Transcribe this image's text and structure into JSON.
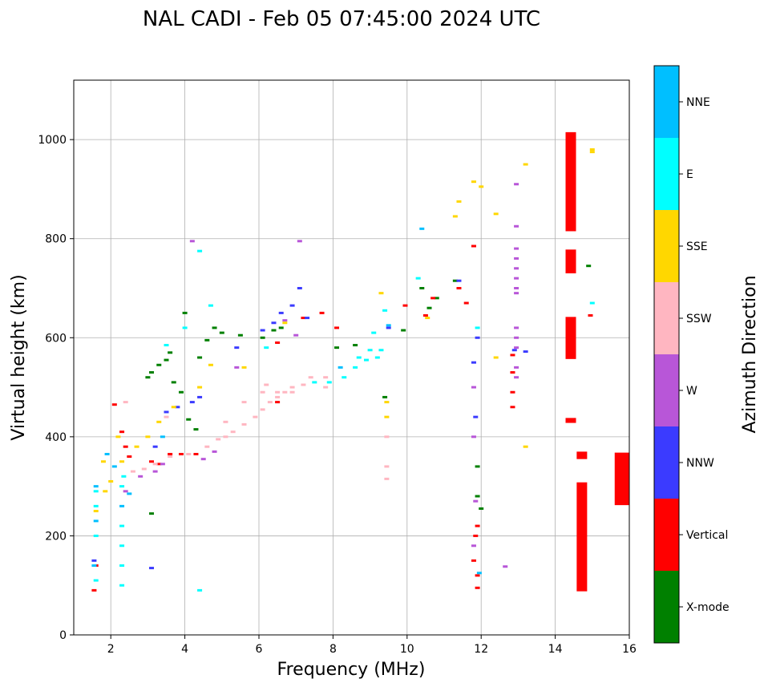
{
  "chart_data": {
    "type": "scatter",
    "title": "NAL CADI - Feb 05 07:45:00 2024 UTC",
    "xlabel": "Frequency (MHz)",
    "ylabel": "Virtual height (km)",
    "xlim": [
      1,
      16
    ],
    "ylim": [
      0,
      1120
    ],
    "xticks": [
      "2",
      "4",
      "6",
      "8",
      "10",
      "12",
      "14",
      "16"
    ],
    "yticks": [
      "0",
      "200",
      "400",
      "600",
      "800",
      "1000"
    ],
    "grid": true,
    "colorbar": {
      "label": "Azimuth Direction",
      "categories": [
        {
          "name": "X-mode",
          "color": "#008000"
        },
        {
          "name": "Vertical",
          "color": "#ff0000"
        },
        {
          "name": "NNW",
          "color": "#3b3bff"
        },
        {
          "name": "W",
          "color": "#b856d8"
        },
        {
          "name": "SSW",
          "color": "#ffb6c1"
        },
        {
          "name": "SSE",
          "color": "#ffd700"
        },
        {
          "name": "E",
          "color": "#00ffff"
        },
        {
          "name": "NNE",
          "color": "#00bfff"
        }
      ]
    },
    "series": [
      {
        "name": "X-mode",
        "points": [
          [
            3.0,
            520
          ],
          [
            3.1,
            530
          ],
          [
            3.3,
            545
          ],
          [
            3.5,
            555
          ],
          [
            3.6,
            570
          ],
          [
            3.7,
            510
          ],
          [
            3.9,
            490
          ],
          [
            4.0,
            650
          ],
          [
            4.1,
            435
          ],
          [
            4.3,
            415
          ],
          [
            4.4,
            560
          ],
          [
            4.6,
            595
          ],
          [
            4.8,
            620
          ],
          [
            5.0,
            610
          ],
          [
            5.5,
            605
          ],
          [
            6.1,
            600
          ],
          [
            6.4,
            615
          ],
          [
            6.6,
            620
          ],
          [
            8.1,
            580
          ],
          [
            8.6,
            585
          ],
          [
            9.4,
            480
          ],
          [
            9.9,
            615
          ],
          [
            10.4,
            700
          ],
          [
            10.6,
            660
          ],
          [
            10.8,
            680
          ],
          [
            11.3,
            715
          ],
          [
            11.9,
            340
          ],
          [
            11.9,
            280
          ],
          [
            12.0,
            255
          ],
          [
            14.4,
            1000
          ],
          [
            14.4,
            970
          ],
          [
            14.4,
            940
          ],
          [
            14.9,
            745
          ],
          [
            3.1,
            245
          ]
        ]
      },
      {
        "name": "Vertical",
        "points": [
          [
            1.55,
            90
          ],
          [
            1.6,
            140
          ],
          [
            2.1,
            465
          ],
          [
            2.3,
            410
          ],
          [
            2.4,
            380
          ],
          [
            2.5,
            360
          ],
          [
            3.1,
            350
          ],
          [
            3.3,
            345
          ],
          [
            3.6,
            365
          ],
          [
            3.9,
            365
          ],
          [
            4.3,
            365
          ],
          [
            6.5,
            470
          ],
          [
            6.5,
            590
          ],
          [
            7.2,
            640
          ],
          [
            7.7,
            650
          ],
          [
            8.1,
            620
          ],
          [
            9.95,
            665
          ],
          [
            10.5,
            645
          ],
          [
            10.7,
            680
          ],
          [
            11.4,
            700
          ],
          [
            11.6,
            670
          ],
          [
            11.8,
            785
          ],
          [
            11.8,
            150
          ],
          [
            11.85,
            200
          ],
          [
            11.9,
            120
          ],
          [
            11.9,
            95
          ],
          [
            11.9,
            220
          ],
          [
            12.85,
            565
          ],
          [
            12.85,
            530
          ],
          [
            12.85,
            490
          ],
          [
            12.85,
            460
          ],
          [
            14.95,
            645
          ]
        ],
        "bands": [
          {
            "x": 14.42,
            "y0": 815,
            "y1": 1015
          },
          {
            "x": 14.42,
            "y0": 730,
            "y1": 778
          },
          {
            "x": 14.42,
            "y0": 557,
            "y1": 642
          },
          {
            "x": 14.42,
            "y0": 428,
            "y1": 438
          },
          {
            "x": 14.72,
            "y0": 88,
            "y1": 308
          },
          {
            "x": 14.72,
            "y0": 355,
            "y1": 370
          },
          {
            "x": 15.8,
            "y0": 262,
            "y1": 368
          }
        ]
      },
      {
        "name": "NNW",
        "points": [
          [
            3.2,
            380
          ],
          [
            3.5,
            450
          ],
          [
            3.8,
            460
          ],
          [
            4.2,
            470
          ],
          [
            4.4,
            480
          ],
          [
            5.4,
            580
          ],
          [
            6.1,
            615
          ],
          [
            6.4,
            630
          ],
          [
            6.6,
            650
          ],
          [
            6.9,
            665
          ],
          [
            7.1,
            700
          ],
          [
            7.3,
            640
          ],
          [
            9.5,
            620
          ],
          [
            11.4,
            715
          ],
          [
            11.8,
            550
          ],
          [
            11.85,
            440
          ],
          [
            11.9,
            600
          ],
          [
            12.9,
            575
          ],
          [
            13.2,
            572
          ],
          [
            3.1,
            135
          ],
          [
            1.55,
            150
          ]
        ]
      },
      {
        "name": "W",
        "points": [
          [
            2.4,
            290
          ],
          [
            2.8,
            320
          ],
          [
            3.2,
            330
          ],
          [
            3.4,
            345
          ],
          [
            4.5,
            355
          ],
          [
            4.8,
            370
          ],
          [
            5.4,
            540
          ],
          [
            6.7,
            635
          ],
          [
            7.0,
            605
          ],
          [
            4.2,
            795
          ],
          [
            7.1,
            795
          ],
          [
            11.8,
            500
          ],
          [
            11.8,
            400
          ],
          [
            11.85,
            270
          ],
          [
            11.8,
            180
          ],
          [
            12.65,
            138
          ],
          [
            12.95,
            910
          ],
          [
            12.95,
            825
          ],
          [
            12.95,
            780
          ],
          [
            12.95,
            760
          ],
          [
            12.95,
            740
          ],
          [
            12.95,
            720
          ],
          [
            12.95,
            700
          ],
          [
            12.95,
            690
          ],
          [
            12.95,
            620
          ],
          [
            12.95,
            600
          ],
          [
            12.95,
            580
          ],
          [
            12.95,
            540
          ],
          [
            12.95,
            520
          ]
        ]
      },
      {
        "name": "SSW",
        "points": [
          [
            2.6,
            330
          ],
          [
            2.9,
            335
          ],
          [
            3.2,
            345
          ],
          [
            3.6,
            360
          ],
          [
            4.1,
            365
          ],
          [
            4.6,
            380
          ],
          [
            4.9,
            395
          ],
          [
            5.1,
            400
          ],
          [
            5.3,
            410
          ],
          [
            5.6,
            425
          ],
          [
            5.9,
            440
          ],
          [
            6.1,
            455
          ],
          [
            6.3,
            470
          ],
          [
            6.5,
            480
          ],
          [
            6.7,
            490
          ],
          [
            6.9,
            500
          ],
          [
            7.2,
            505
          ],
          [
            7.8,
            520
          ],
          [
            5.1,
            430
          ],
          [
            5.6,
            470
          ],
          [
            6.1,
            490
          ],
          [
            6.2,
            505
          ],
          [
            6.5,
            490
          ],
          [
            6.9,
            490
          ],
          [
            7.4,
            520
          ],
          [
            7.8,
            500
          ],
          [
            9.45,
            400
          ],
          [
            9.45,
            340
          ],
          [
            9.45,
            315
          ],
          [
            3.5,
            440
          ],
          [
            2.4,
            470
          ]
        ]
      },
      {
        "name": "SSE",
        "points": [
          [
            1.6,
            250
          ],
          [
            1.85,
            290
          ],
          [
            2.0,
            310
          ],
          [
            2.3,
            350
          ],
          [
            2.7,
            380
          ],
          [
            3.0,
            400
          ],
          [
            3.3,
            430
          ],
          [
            3.7,
            460
          ],
          [
            4.4,
            500
          ],
          [
            4.7,
            545
          ],
          [
            5.6,
            540
          ],
          [
            6.7,
            630
          ],
          [
            9.45,
            470
          ],
          [
            9.45,
            440
          ],
          [
            9.3,
            690
          ],
          [
            10.55,
            640
          ],
          [
            11.3,
            845
          ],
          [
            11.4,
            875
          ],
          [
            11.8,
            915
          ],
          [
            12.0,
            905
          ],
          [
            12.4,
            850
          ],
          [
            12.4,
            560
          ],
          [
            13.2,
            950
          ],
          [
            13.2,
            380
          ],
          [
            15.0,
            975
          ],
          [
            15.0,
            980
          ],
          [
            1.8,
            350
          ],
          [
            2.2,
            400
          ]
        ]
      },
      {
        "name": "E",
        "points": [
          [
            1.6,
            200
          ],
          [
            1.6,
            260
          ],
          [
            1.6,
            290
          ],
          [
            1.6,
            110
          ],
          [
            2.3,
            100
          ],
          [
            2.3,
            140
          ],
          [
            2.3,
            180
          ],
          [
            2.3,
            220
          ],
          [
            2.3,
            300
          ],
          [
            2.35,
            320
          ],
          [
            3.5,
            585
          ],
          [
            4.0,
            620
          ],
          [
            4.4,
            775
          ],
          [
            4.4,
            90
          ],
          [
            4.7,
            665
          ],
          [
            6.2,
            580
          ],
          [
            7.5,
            510
          ],
          [
            7.9,
            510
          ],
          [
            8.3,
            520
          ],
          [
            8.6,
            540
          ],
          [
            8.7,
            560
          ],
          [
            8.9,
            555
          ],
          [
            9.0,
            575
          ],
          [
            9.2,
            560
          ],
          [
            9.3,
            575
          ],
          [
            9.1,
            610
          ],
          [
            9.4,
            655
          ],
          [
            10.3,
            720
          ],
          [
            11.9,
            620
          ],
          [
            15.0,
            670
          ]
        ]
      },
      {
        "name": "NNE",
        "points": [
          [
            1.6,
            300
          ],
          [
            1.6,
            230
          ],
          [
            1.55,
            140
          ],
          [
            1.9,
            365
          ],
          [
            2.1,
            340
          ],
          [
            2.5,
            285
          ],
          [
            3.4,
            400
          ],
          [
            10.4,
            820
          ],
          [
            11.95,
            125
          ],
          [
            2.3,
            260
          ],
          [
            8.2,
            540
          ],
          [
            9.5,
            625
          ]
        ]
      }
    ]
  }
}
